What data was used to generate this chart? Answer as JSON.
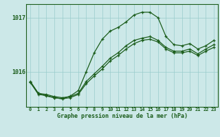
{
  "title": "Graphe pression niveau de la mer (hPa)",
  "bg_color": "#cce8e8",
  "grid_color": "#99cccc",
  "line_color": "#1a5c1a",
  "hours": [
    0,
    1,
    2,
    3,
    4,
    5,
    6,
    7,
    8,
    9,
    10,
    11,
    12,
    13,
    14,
    15,
    16,
    17,
    18,
    19,
    20,
    21,
    22,
    23
  ],
  "line_main": [
    1015.8,
    1015.6,
    1015.55,
    1015.52,
    1015.5,
    1015.55,
    1015.65,
    1016.0,
    1016.35,
    1016.6,
    1016.75,
    1016.82,
    1016.92,
    1017.05,
    1017.1,
    1017.1,
    1017.0,
    1016.65,
    1016.5,
    1016.48,
    1016.52,
    1016.42,
    1016.48,
    1016.58
  ],
  "line_lo": [
    1015.8,
    1015.58,
    1015.56,
    1015.52,
    1015.5,
    1015.52,
    1015.58,
    1015.78,
    1015.92,
    1016.05,
    1016.2,
    1016.3,
    1016.42,
    1016.52,
    1016.58,
    1016.6,
    1016.55,
    1016.42,
    1016.35,
    1016.35,
    1016.38,
    1016.3,
    1016.38,
    1016.45
  ],
  "line_hi": [
    1015.82,
    1015.6,
    1015.58,
    1015.54,
    1015.52,
    1015.54,
    1015.6,
    1015.82,
    1015.96,
    1016.1,
    1016.25,
    1016.35,
    1016.48,
    1016.58,
    1016.62,
    1016.65,
    1016.58,
    1016.45,
    1016.38,
    1016.38,
    1016.42,
    1016.33,
    1016.42,
    1016.5
  ],
  "ylim_min": 1015.35,
  "ylim_max": 1017.25,
  "yticks": [
    1016,
    1017
  ],
  "xlim_min": -0.5,
  "xlim_max": 23.5,
  "x_labels": [
    "0",
    "1",
    "2",
    "3",
    "4",
    "5",
    "6",
    "7",
    "8",
    "9",
    "10",
    "11",
    "12",
    "13",
    "14",
    "15",
    "16",
    "17",
    "18",
    "19",
    "20",
    "21",
    "22",
    "23"
  ]
}
